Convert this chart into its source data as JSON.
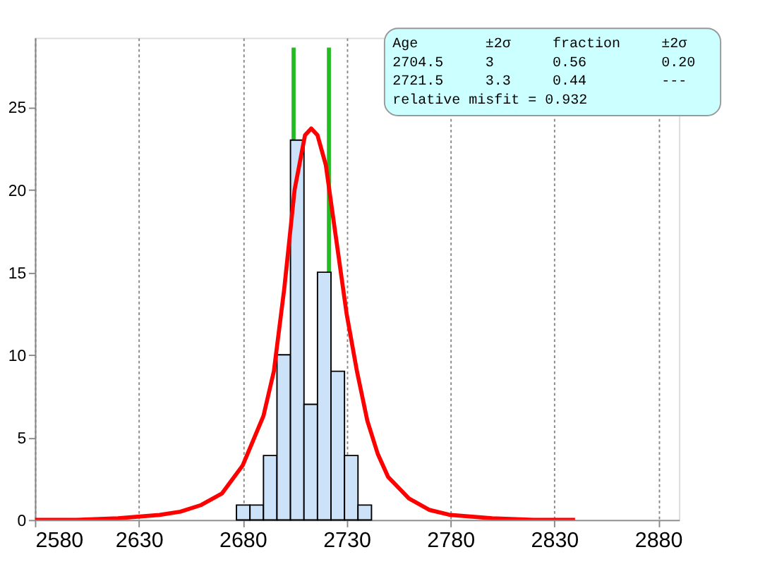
{
  "chart_data": {
    "type": "histogram",
    "bins": [
      2677,
      2683.5,
      2690,
      2696.5,
      2703,
      2709.5,
      2716,
      2722.5,
      2729,
      2735.5,
      2742
    ],
    "values": [
      0.9,
      0.9,
      3.9,
      10,
      23,
      7,
      15,
      9,
      3.9,
      0.9
    ],
    "color": "#cce2f8",
    "series": [
      {
        "type": "line",
        "color": "#ff0000",
        "x": [
          2580,
          2600,
          2620,
          2640,
          2650,
          2660,
          2670,
          2680,
          2690,
          2695,
          2700,
          2705,
          2710,
          2713,
          2716,
          2720,
          2725,
          2730,
          2735,
          2740,
          2745,
          2750,
          2760,
          2770,
          2780,
          2800,
          2820,
          2840
        ],
        "values": [
          0,
          0,
          0.1,
          0.3,
          0.5,
          0.9,
          1.6,
          3.3,
          6.3,
          9,
          14,
          20,
          23.3,
          23.7,
          23.3,
          21.5,
          17,
          12.5,
          9,
          6,
          4,
          2.6,
          1.3,
          0.6,
          0.3,
          0.1,
          0,
          0
        ]
      },
      {
        "type": "line",
        "color": "#22bb22",
        "x": [
          2704.5,
          2704.5
        ],
        "values": [
          23,
          28.6
        ]
      },
      {
        "type": "line",
        "color": "#22bb22",
        "x": [
          2721.5,
          2721.5
        ],
        "values": [
          15,
          28.6
        ]
      }
    ],
    "xlim": [
      2580,
      2890
    ],
    "xticks": [
      2580,
      2630,
      2680,
      2730,
      2780,
      2830,
      2880
    ],
    "ylim": [
      0,
      29.2
    ],
    "yticks": [
      0,
      5,
      10,
      15,
      20,
      25
    ],
    "grid": "x",
    "annotations": [
      " Age      ±2σ    fraction    ±2σ",
      "2704.5   3          0.56    0.20",
      "2721.5   3.3        0.44     ---",
      "relative misfit = 0.932"
    ]
  }
}
